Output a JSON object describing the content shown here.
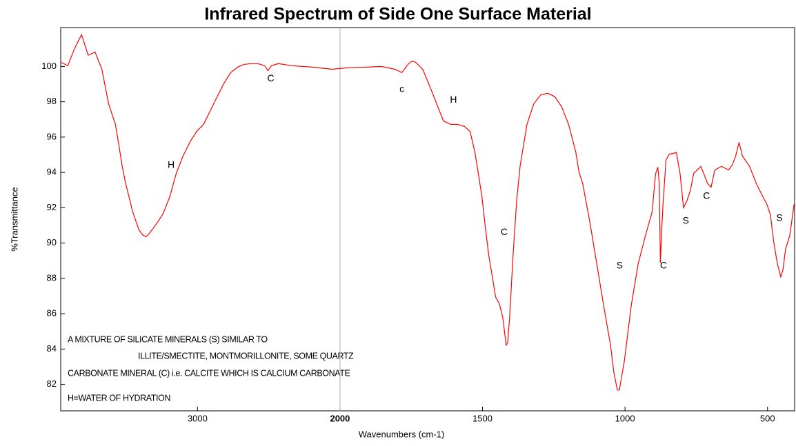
{
  "chart_data": {
    "type": "line",
    "title": "Infrared Spectrum of Side One Surface Material",
    "x_label": "Wavenumbers (cm-1)",
    "y_label": "%Transmittance",
    "xlim": [
      3960,
      405
    ],
    "xbreak": 2000,
    "xticks": [
      3000,
      2000,
      1500,
      1000,
      500
    ],
    "ylim": [
      80.5,
      102.2
    ],
    "yticks": [
      82,
      84,
      86,
      88,
      90,
      92,
      94,
      96,
      98,
      100
    ],
    "color": "#ff0000",
    "x": [
      3957,
      3910,
      3862,
      3814,
      3767,
      3719,
      3671,
      3624,
      3576,
      3552,
      3529,
      3505,
      3481,
      3457,
      3433,
      3410,
      3386,
      3362,
      3338,
      3291,
      3243,
      3195,
      3148,
      3100,
      3052,
      3005,
      2957,
      2910,
      2862,
      2814,
      2767,
      2719,
      2671,
      2624,
      2576,
      2529,
      2505,
      2481,
      2433,
      2338,
      2195,
      2052,
      1978,
      1905,
      1856,
      1807,
      1783,
      1759,
      1746,
      1734,
      1710,
      1685,
      1661,
      1637,
      1612,
      1588,
      1563,
      1544,
      1527,
      1515,
      1502,
      1490,
      1478,
      1466,
      1454,
      1441,
      1429,
      1417,
      1412,
      1405,
      1393,
      1380,
      1368,
      1344,
      1320,
      1295,
      1271,
      1246,
      1222,
      1198,
      1173,
      1161,
      1149,
      1124,
      1100,
      1076,
      1051,
      1039,
      1027,
      1020,
      1002,
      978,
      954,
      929,
      905,
      893,
      885,
      880,
      876,
      871,
      866,
      856,
      844,
      820,
      807,
      795,
      783,
      771,
      759,
      734,
      710,
      698,
      685,
      661,
      637,
      624,
      612,
      600,
      588,
      563,
      539,
      515,
      502,
      490,
      478,
      466,
      454,
      446,
      437,
      422,
      407
    ],
    "values": [
      100.23,
      100.04,
      101.02,
      101.8,
      100.63,
      100.82,
      99.84,
      97.89,
      96.72,
      95.55,
      94.38,
      93.4,
      92.62,
      91.84,
      91.25,
      90.74,
      90.47,
      90.35,
      90.55,
      91.05,
      91.64,
      92.62,
      93.98,
      94.96,
      95.74,
      96.33,
      96.72,
      97.5,
      98.28,
      99.06,
      99.65,
      99.96,
      100.12,
      100.16,
      100.16,
      100.04,
      99.77,
      100.04,
      100.16,
      100.04,
      99.96,
      99.84,
      99.92,
      99.96,
      100.0,
      99.84,
      99.65,
      100.16,
      100.31,
      100.23,
      99.84,
      98.87,
      97.89,
      96.91,
      96.72,
      96.72,
      96.6,
      96.33,
      95.16,
      93.98,
      92.62,
      90.86,
      89.3,
      88.13,
      86.95,
      86.56,
      85.78,
      84.22,
      84.34,
      85.78,
      89.3,
      92.42,
      94.38,
      96.72,
      97.89,
      98.4,
      98.48,
      98.28,
      97.7,
      96.72,
      95.16,
      93.98,
      93.4,
      91.25,
      88.91,
      86.56,
      84.22,
      82.66,
      81.68,
      81.68,
      83.36,
      86.48,
      88.83,
      90.39,
      91.76,
      93.91,
      94.3,
      93.44,
      88.87,
      90.82,
      92.38,
      94.73,
      95.04,
      95.12,
      93.95,
      92.0,
      92.38,
      92.97,
      93.95,
      94.34,
      93.36,
      93.16,
      94.14,
      94.34,
      94.14,
      94.41,
      94.92,
      95.7,
      94.92,
      94.34,
      93.36,
      92.58,
      92.19,
      91.6,
      90.04,
      88.87,
      88.09,
      88.48,
      89.65,
      90.43,
      92.19
    ],
    "annotations": [
      {
        "text": "H",
        "x": 3185,
        "y": 94.4
      },
      {
        "text": "C",
        "x": 2486,
        "y": 99.3
      },
      {
        "text": "c",
        "x": 1783,
        "y": 98.7
      },
      {
        "text": "H",
        "x": 1602,
        "y": 98.1
      },
      {
        "text": "C",
        "x": 1424,
        "y": 90.6
      },
      {
        "text": "S",
        "x": 1019,
        "y": 88.7
      },
      {
        "text": "C",
        "x": 865,
        "y": 88.7
      },
      {
        "text": "S",
        "x": 787,
        "y": 91.25
      },
      {
        "text": "C",
        "x": 714,
        "y": 92.65
      },
      {
        "text": "S",
        "x": 458,
        "y": 91.4
      }
    ],
    "notes": [
      "A MIXTURE OF SILICATE MINERALS (S) SIMILAR TO",
      "ILLITE/SMECTITE, MONTMORILLONITE, SOME QUARTZ",
      "CARBONATE MINERAL (C) i.e. CALCITE WHICH IS CALCIUM CARBONATE",
      "H=WATER OF HYDRATION"
    ]
  }
}
